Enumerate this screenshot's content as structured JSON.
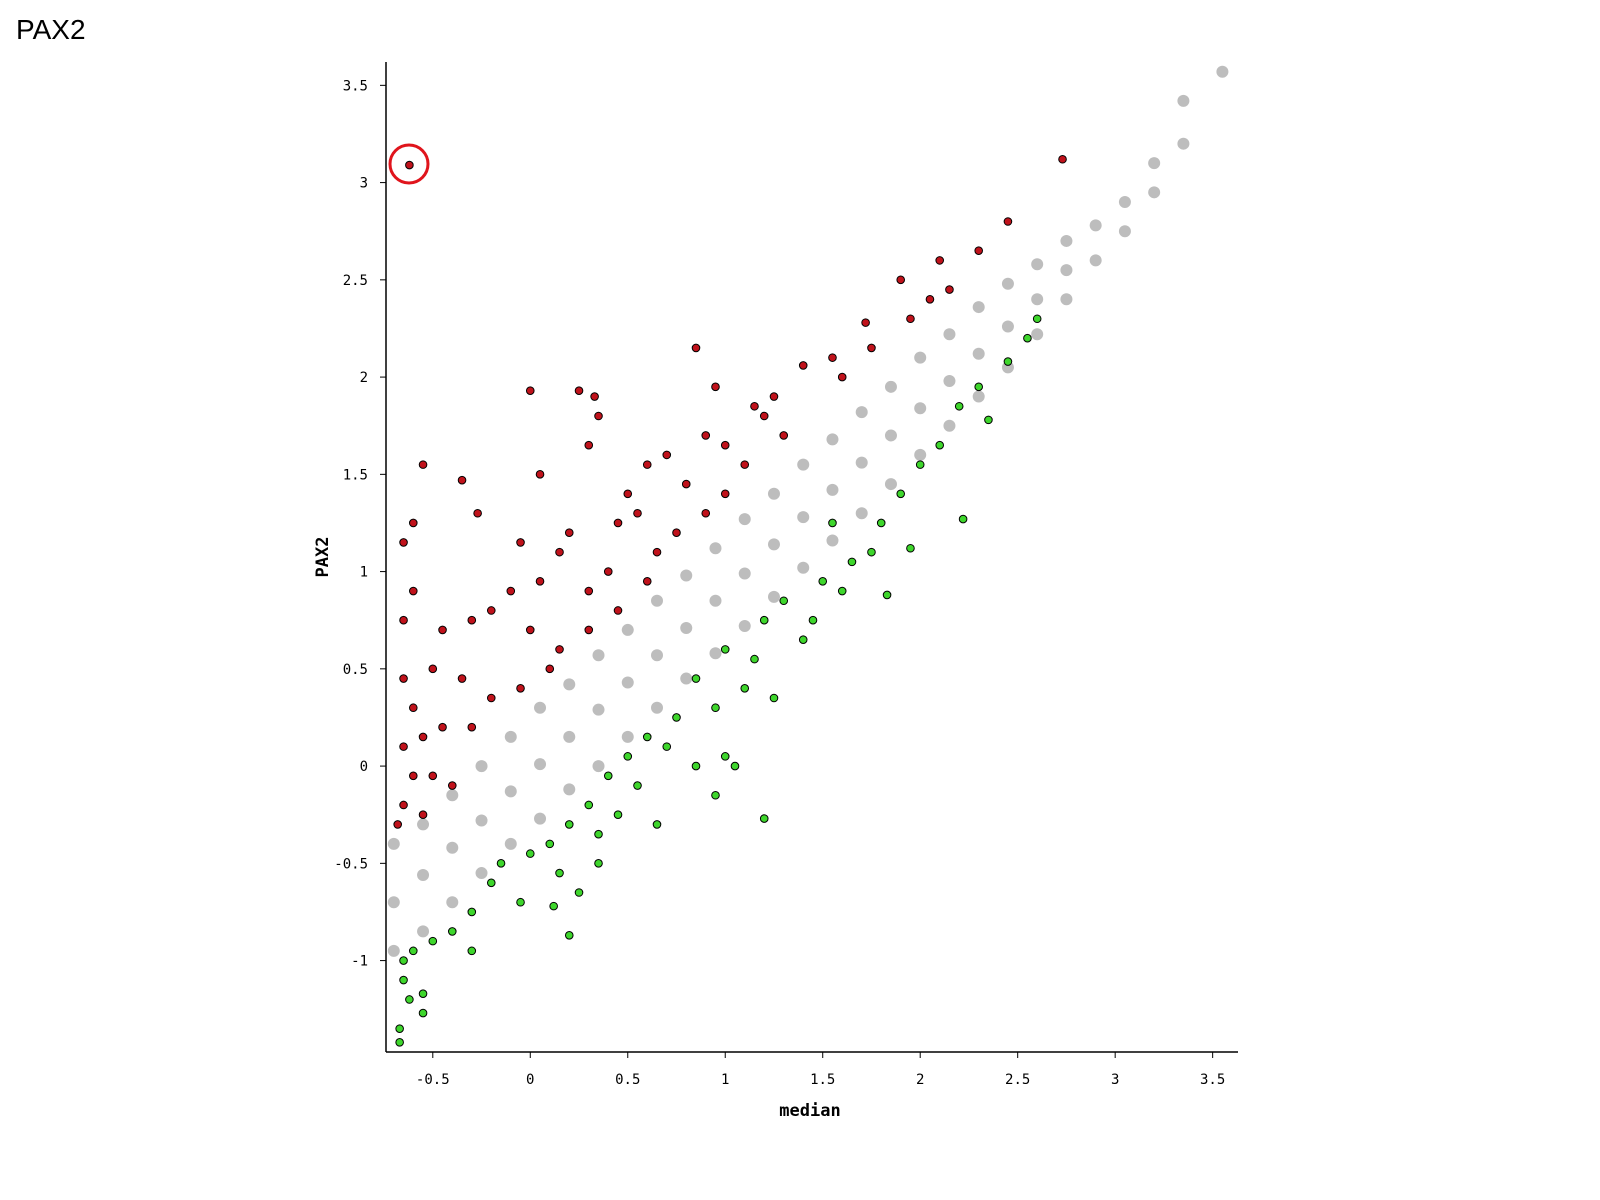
{
  "page_title": "PAX2",
  "chart_data": {
    "type": "scatter",
    "xlabel": "median",
    "ylabel": "PAX2",
    "xlim": [
      -0.74,
      3.63
    ],
    "ylim": [
      -1.47,
      3.62
    ],
    "xticks": [
      -0.5,
      0,
      0.5,
      1,
      1.5,
      2,
      2.5,
      3,
      3.5
    ],
    "yticks": [
      -1,
      -0.5,
      0,
      0.5,
      1,
      1.5,
      2,
      2.5,
      3,
      3.5
    ],
    "series": [
      {
        "color": "#bdbdbd",
        "x": [
          -0.7,
          -0.7,
          -0.7,
          -0.55,
          -0.55,
          -0.55,
          -0.4,
          -0.4,
          -0.4,
          -0.25,
          -0.25,
          -0.25,
          -0.1,
          -0.1,
          -0.1,
          0.05,
          0.05,
          0.05,
          0.2,
          0.2,
          0.2,
          0.35,
          0.35,
          0.35,
          0.5,
          0.5,
          0.5,
          0.65,
          0.65,
          0.65,
          0.8,
          0.8,
          0.8,
          0.95,
          0.95,
          0.95,
          1.1,
          1.1,
          1.1,
          1.25,
          1.25,
          1.25,
          1.4,
          1.4,
          1.4,
          1.55,
          1.55,
          1.55,
          1.7,
          1.7,
          1.7,
          1.85,
          1.85,
          1.85,
          2.0,
          2.0,
          2.0,
          2.15,
          2.15,
          2.15,
          2.3,
          2.3,
          2.3,
          2.45,
          2.45,
          2.45,
          2.6,
          2.6,
          2.6,
          2.75,
          2.75,
          2.75,
          2.9,
          2.9,
          3.05,
          3.05,
          3.2,
          3.2,
          3.35,
          3.35,
          3.55
        ],
        "y": [
          -0.95,
          -0.7,
          -0.4,
          -0.85,
          -0.56,
          -0.3,
          -0.7,
          -0.42,
          -0.15,
          -0.55,
          -0.28,
          0.0,
          -0.4,
          -0.13,
          0.15,
          -0.27,
          0.01,
          0.3,
          -0.12,
          0.15,
          0.42,
          0.0,
          0.29,
          0.57,
          0.15,
          0.43,
          0.7,
          0.3,
          0.57,
          0.85,
          0.45,
          0.71,
          0.98,
          0.58,
          0.85,
          1.12,
          0.72,
          0.99,
          1.27,
          0.87,
          1.14,
          1.4,
          1.02,
          1.28,
          1.55,
          1.16,
          1.42,
          1.68,
          1.3,
          1.56,
          1.82,
          1.45,
          1.7,
          1.95,
          1.6,
          1.84,
          2.1,
          1.75,
          1.98,
          2.22,
          1.9,
          2.12,
          2.36,
          2.05,
          2.26,
          2.48,
          2.22,
          2.4,
          2.58,
          2.4,
          2.55,
          2.7,
          2.6,
          2.78,
          2.75,
          2.9,
          2.95,
          3.1,
          3.2,
          3.42,
          3.57
        ]
      },
      {
        "color": "#c0121b",
        "x": [
          -0.62,
          2.73,
          2.45,
          2.3,
          2.1,
          2.05,
          1.95,
          1.72,
          1.4,
          1.55,
          1.25,
          1.15,
          0.95,
          0.85,
          0.25,
          0.0,
          0.33,
          0.35,
          0.3,
          0.6,
          0.7,
          0.9,
          1.0,
          1.2,
          0.8,
          1.1,
          0.55,
          0.45,
          0.2,
          0.05,
          -0.55,
          -0.35,
          -0.27,
          -0.6,
          -0.65,
          -0.05,
          0.15,
          0.65,
          0.75,
          0.9,
          -0.1,
          0.05,
          0.3,
          0.45,
          0.6,
          -0.6,
          -0.65,
          -0.45,
          -0.3,
          -0.2,
          0.0,
          0.15,
          0.3,
          -0.5,
          -0.35,
          -0.2,
          -0.05,
          0.1,
          -0.65,
          -0.6,
          -0.55,
          -0.45,
          -0.3,
          -0.65,
          -0.6,
          -0.5,
          -0.4,
          -0.65,
          -0.55,
          -0.68,
          1.3,
          1.6,
          1.75,
          1.9,
          2.15,
          0.5,
          1.0,
          0.4
        ],
        "y": [
          3.09,
          3.12,
          2.8,
          2.65,
          2.6,
          2.4,
          2.3,
          2.28,
          2.06,
          2.1,
          1.9,
          1.85,
          1.95,
          2.15,
          1.93,
          1.93,
          1.9,
          1.8,
          1.65,
          1.55,
          1.6,
          1.7,
          1.65,
          1.8,
          1.45,
          1.55,
          1.3,
          1.25,
          1.2,
          1.5,
          1.55,
          1.47,
          1.3,
          1.25,
          1.15,
          1.15,
          1.1,
          1.1,
          1.2,
          1.3,
          0.9,
          0.95,
          0.9,
          0.8,
          0.95,
          0.9,
          0.75,
          0.7,
          0.75,
          0.8,
          0.7,
          0.6,
          0.7,
          0.5,
          0.45,
          0.35,
          0.4,
          0.5,
          0.45,
          0.3,
          0.15,
          0.2,
          0.2,
          0.1,
          -0.05,
          -0.05,
          -0.1,
          -0.2,
          -0.25,
          -0.3,
          1.7,
          2.0,
          2.15,
          2.5,
          2.45,
          1.4,
          1.4,
          1.0
        ]
      },
      {
        "color": "#3ed62c",
        "x": [
          2.6,
          2.55,
          2.45,
          2.3,
          2.35,
          2.2,
          2.1,
          2.0,
          2.22,
          1.9,
          1.8,
          1.95,
          1.75,
          1.55,
          1.65,
          1.83,
          1.5,
          1.45,
          1.6,
          1.3,
          1.4,
          1.2,
          1.15,
          1.25,
          1.0,
          1.1,
          0.95,
          0.85,
          0.75,
          0.7,
          0.85,
          1.0,
          0.95,
          1.2,
          0.6,
          0.5,
          0.55,
          0.65,
          0.4,
          0.3,
          0.35,
          0.2,
          0.1,
          0.0,
          0.15,
          0.35,
          0.25,
          -0.15,
          -0.2,
          -0.05,
          0.12,
          -0.3,
          -0.4,
          -0.5,
          -0.3,
          0.2,
          -0.6,
          -0.65,
          -0.65,
          -0.62,
          -0.55,
          -0.55,
          -0.67,
          -0.67,
          1.05,
          0.45
        ],
        "y": [
          2.3,
          2.2,
          2.08,
          1.95,
          1.78,
          1.85,
          1.65,
          1.55,
          1.27,
          1.4,
          1.25,
          1.12,
          1.1,
          1.25,
          1.05,
          0.88,
          0.95,
          0.75,
          0.9,
          0.85,
          0.65,
          0.75,
          0.55,
          0.35,
          0.6,
          0.4,
          0.3,
          0.45,
          0.25,
          0.1,
          0.0,
          0.05,
          -0.15,
          -0.27,
          0.15,
          0.05,
          -0.1,
          -0.3,
          -0.05,
          -0.2,
          -0.35,
          -0.3,
          -0.4,
          -0.45,
          -0.55,
          -0.5,
          -0.65,
          -0.5,
          -0.6,
          -0.7,
          -0.72,
          -0.75,
          -0.85,
          -0.9,
          -0.95,
          -0.87,
          -0.95,
          -1.0,
          -1.1,
          -1.2,
          -1.17,
          -1.27,
          -1.35,
          -1.42,
          0.0,
          -0.25
        ]
      }
    ]
  }
}
